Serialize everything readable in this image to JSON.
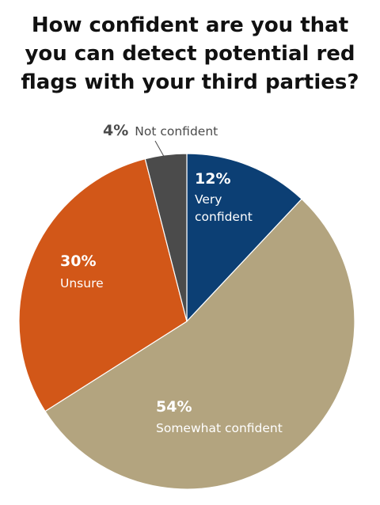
{
  "title_lines": [
    "How confident are you that",
    "you can detect potential red",
    "flags with your third parties?"
  ],
  "chart_data": {
    "type": "pie",
    "title": "How confident are you that you can detect potential red flags with your third parties?",
    "slices": [
      {
        "name": "Very confident",
        "value": 12,
        "display": "12%",
        "label_lines": [
          "Very",
          "confident"
        ],
        "color": "#0c3f74"
      },
      {
        "name": "Somewhat confident",
        "value": 54,
        "display": "54%",
        "label_lines": [
          "Somewhat confident"
        ],
        "color": "#b3a47f"
      },
      {
        "name": "Unsure",
        "value": 30,
        "display": "30%",
        "label_lines": [
          "Unsure"
        ],
        "color": "#d25718"
      },
      {
        "name": "Not confident",
        "value": 4,
        "display": "4%",
        "label_lines": [
          "Not confident"
        ],
        "color": "#4b4b4b"
      }
    ],
    "start_angle": "top (12 o'clock)",
    "direction": "clockwise",
    "legend": "none (labels on slices)"
  }
}
